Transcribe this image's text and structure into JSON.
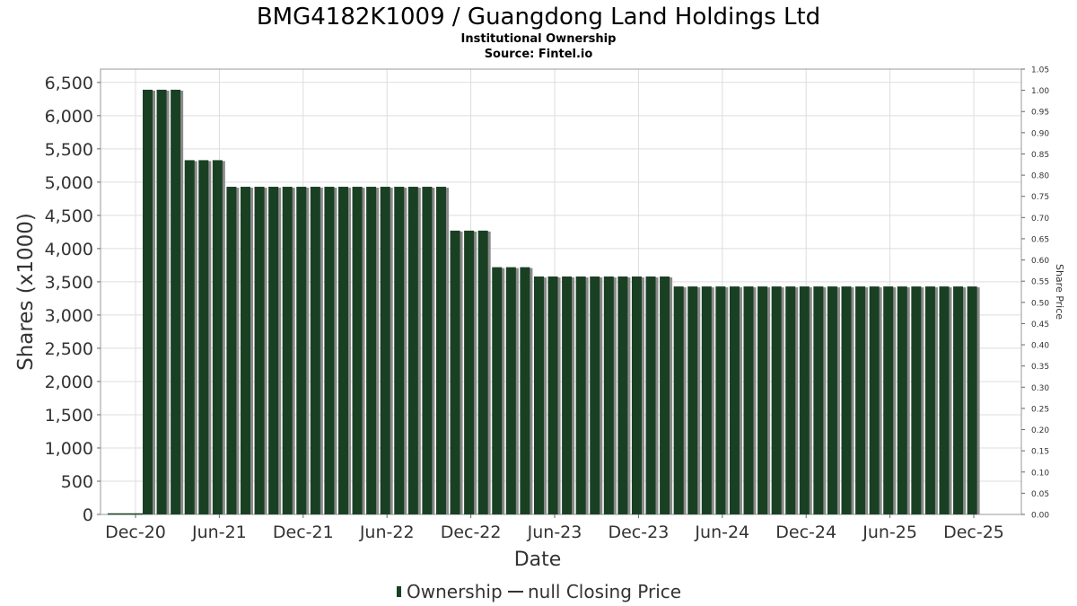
{
  "header": {
    "title": "BMG4182K1009 / Guangdong Land Holdings Ltd",
    "subtitle": "Institutional Ownership",
    "source": "Source: Fintel.io"
  },
  "legend": {
    "ownership_label": "Ownership",
    "price_label": "null Closing Price"
  },
  "colors": {
    "bar": "#1a4024",
    "bar_shadow": "#8a8a8a",
    "grid": "#dddddd",
    "axis_text": "#333333"
  },
  "chart_data": {
    "type": "bar",
    "title": "BMG4182K1009 / Guangdong Land Holdings Ltd",
    "xlabel": "Date",
    "ylabel": "Shares (x1000)",
    "y2label": "Share Price",
    "ylim": [
      0,
      6700
    ],
    "y2lim": [
      0,
      1.05
    ],
    "x_ticks": [
      "Dec-20",
      "Jun-21",
      "Dec-21",
      "Jun-22",
      "Dec-22",
      "Jun-23",
      "Dec-23",
      "Jun-24",
      "Dec-24",
      "Jun-25",
      "Dec-25"
    ],
    "y_ticks": [
      "0",
      "500",
      "1,000",
      "1,500",
      "2,000",
      "2,500",
      "3,000",
      "3,500",
      "4,000",
      "4,500",
      "5,000",
      "5,500",
      "6,000",
      "6,500"
    ],
    "y_tick_values": [
      0,
      500,
      1000,
      1500,
      2000,
      2500,
      3000,
      3500,
      4000,
      4500,
      5000,
      5500,
      6000,
      6500
    ],
    "y2_ticks": [
      "0.00",
      "0.05",
      "0.10",
      "0.15",
      "0.20",
      "0.25",
      "0.30",
      "0.35",
      "0.40",
      "0.45",
      "0.50",
      "0.55",
      "0.60",
      "0.65",
      "0.70",
      "0.75",
      "0.80",
      "0.85",
      "0.90",
      "0.95",
      "1.00",
      "1.05"
    ],
    "series": [
      {
        "name": "Ownership",
        "values": [
          6390,
          6390,
          6390,
          5330,
          5330,
          5330,
          4930,
          4930,
          4930,
          4930,
          4930,
          4930,
          4930,
          4930,
          4930,
          4930,
          4930,
          4930,
          4930,
          4930,
          4930,
          4930,
          4270,
          4270,
          4270,
          3720,
          3720,
          3720,
          3580,
          3580,
          3580,
          3580,
          3580,
          3580,
          3580,
          3580,
          3580,
          3580,
          3430,
          3430,
          3430,
          3430,
          3430,
          3430,
          3430,
          3430,
          3430,
          3430,
          3430,
          3430,
          3430,
          3430,
          3430,
          3430,
          3430,
          3430,
          3430,
          3430,
          3430,
          3430
        ]
      }
    ],
    "grid": true,
    "legend_position": "bottom"
  }
}
